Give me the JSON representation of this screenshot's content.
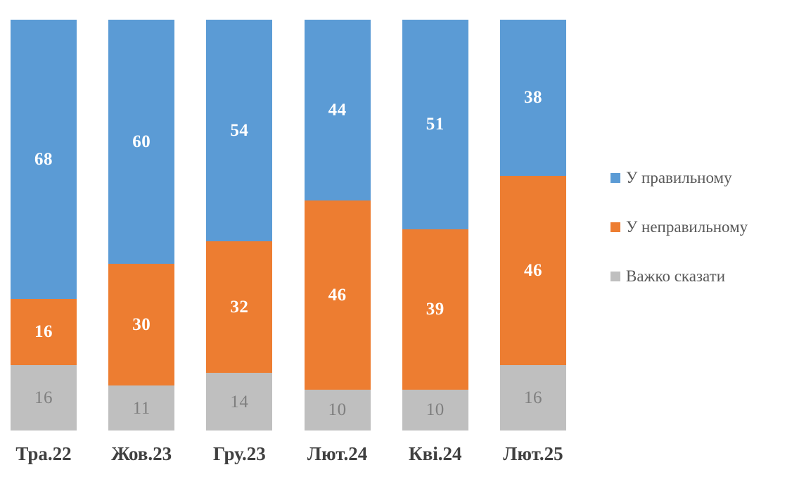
{
  "chart_data": {
    "type": "bar",
    "subtype": "stacked-100-percent-column",
    "title": "",
    "xlabel": "",
    "ylabel": "",
    "grid": false,
    "legend_position": "right",
    "background_color": "#FFFFFF",
    "axis_label_color": "#404040",
    "legend_text_color": "#595959",
    "categories": [
      "Тра.22",
      "Жов.23",
      "Гру.23",
      "Лют.24",
      "Кві.24",
      "Лют.25"
    ],
    "series": [
      {
        "name": "У правильному",
        "color": "#5B9BD5",
        "label_color": "#FFFFFF",
        "label_bold": true,
        "values": [
          68,
          60,
          54,
          44,
          51,
          38
        ]
      },
      {
        "name": "У неправильному",
        "color": "#ED7D31",
        "label_color": "#FFFFFF",
        "label_bold": true,
        "values": [
          16,
          30,
          32,
          46,
          39,
          46
        ]
      },
      {
        "name": "Важко сказати",
        "color": "#BFBFBF",
        "label_color": "#7F7F7F",
        "label_bold": false,
        "values": [
          16,
          11,
          14,
          10,
          10,
          16
        ]
      }
    ]
  },
  "legend": {
    "items": [
      {
        "label": "У правильному",
        "color": "#5B9BD5"
      },
      {
        "label": "У неправильному",
        "color": "#ED7D31"
      },
      {
        "label": "Важко сказати",
        "color": "#BFBFBF"
      }
    ]
  }
}
